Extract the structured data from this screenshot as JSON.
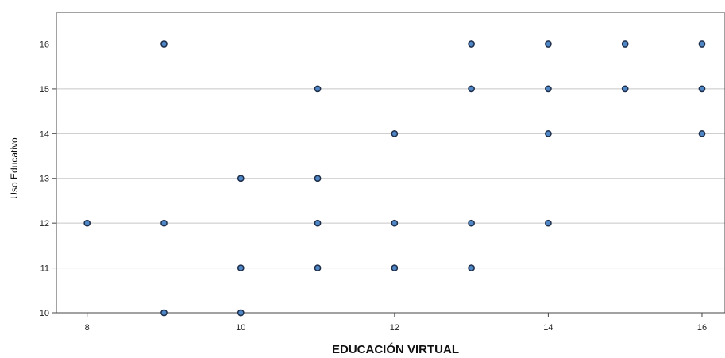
{
  "chart_data": {
    "type": "scatter",
    "xlabel": "EDUCACIÓN VIRTUAL",
    "ylabel": "Uso Educativo",
    "xlim": [
      7.6,
      16.3
    ],
    "ylim": [
      10,
      16.7
    ],
    "xticks": [
      "8",
      "10",
      "12",
      "14",
      "16"
    ],
    "yticks": [
      "10",
      "11",
      "12",
      "13",
      "14",
      "15",
      "16"
    ],
    "grid": "horizontal",
    "marker_color": "#4f86c6",
    "marker_edge_color": "#1f2f4a",
    "points": [
      [
        9,
        16
      ],
      [
        13,
        16
      ],
      [
        14,
        16
      ],
      [
        15,
        16
      ],
      [
        16,
        16
      ],
      [
        11,
        15
      ],
      [
        13,
        15
      ],
      [
        14,
        15
      ],
      [
        15,
        15
      ],
      [
        16,
        15
      ],
      [
        12,
        14
      ],
      [
        14,
        14
      ],
      [
        16,
        14
      ],
      [
        10,
        13
      ],
      [
        11,
        13
      ],
      [
        8,
        12
      ],
      [
        9,
        12
      ],
      [
        11,
        12
      ],
      [
        12,
        12
      ],
      [
        13,
        12
      ],
      [
        14,
        12
      ],
      [
        10,
        11
      ],
      [
        11,
        11
      ],
      [
        12,
        11
      ],
      [
        13,
        11
      ],
      [
        9,
        10
      ],
      [
        10,
        10
      ]
    ]
  }
}
